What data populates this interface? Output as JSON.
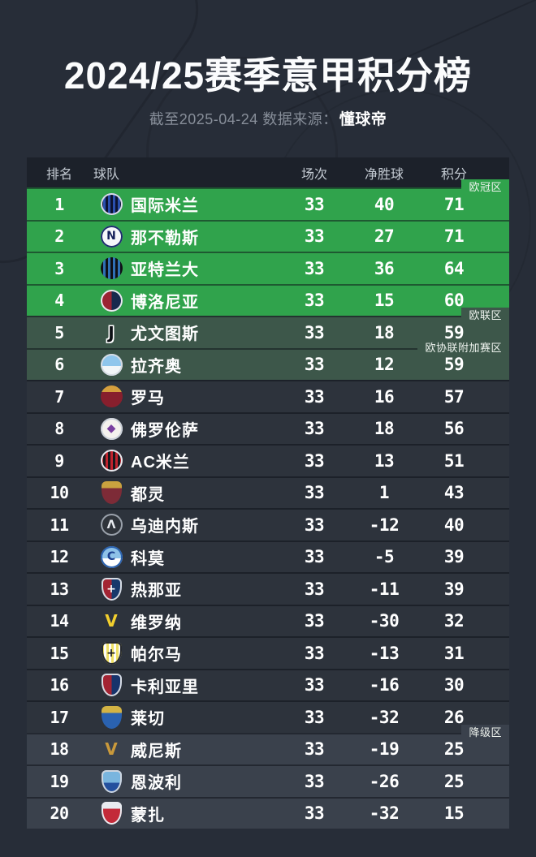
{
  "title": "2024/25赛季意甲积分榜",
  "subtitle": {
    "prefix": "截至2025-04-24 数据来源：",
    "source": "懂球帝"
  },
  "colors": {
    "page_bg": "#272d38",
    "table_header_bg": "#1c212a",
    "champions_zone_green": "#30a34c",
    "europa_zone_green": "#3d574a",
    "normal_row_gray": "#2d333c",
    "relegation_row_gray": "#3a414c",
    "subtitle_gray": "#878e99",
    "text_white": "#ffffff"
  },
  "chart_data": {
    "type": "table",
    "title": "2024/25赛季意甲积分榜",
    "as_of": "截至2025-04-24",
    "source": "懂球帝",
    "columns": [
      "排名",
      "球队",
      "场次",
      "净胜球",
      "积分"
    ],
    "zones": [
      {
        "id": "ucl",
        "label": "欧冠区",
        "rows": [
          1,
          4
        ],
        "color": "#30a34c"
      },
      {
        "id": "uel",
        "label": "欧联区",
        "rows": [
          5,
          5
        ],
        "color": "#3d574a"
      },
      {
        "id": "uecl",
        "label": "欧协联附加赛区",
        "rows": [
          6,
          6
        ],
        "color": "#3d574a"
      },
      {
        "id": "mid",
        "label": "",
        "rows": [
          7,
          17
        ],
        "color": "#2d333c"
      },
      {
        "id": "releg",
        "label": "降级区",
        "rows": [
          18,
          20
        ],
        "color": "#3a414c"
      }
    ],
    "rows": [
      {
        "rank": 1,
        "team": "国际米兰",
        "played": 33,
        "gd": 40,
        "points": 71,
        "zone": "ucl",
        "logo": {
          "shape": "circle",
          "style": "stripes-v",
          "c1": "#0d1331",
          "c2": "#2a4fae",
          "ring": "#d9dde8",
          "glyph": ""
        }
      },
      {
        "rank": 2,
        "team": "那不勒斯",
        "played": 33,
        "gd": 27,
        "points": 71,
        "zone": "ucl",
        "logo": {
          "shape": "circle",
          "style": "solid",
          "c1": "#f5f7fa",
          "ring": "#1d2d6e",
          "glyph": "N",
          "glyph_color": "#14205a"
        }
      },
      {
        "rank": 3,
        "team": "亚特兰大",
        "played": 33,
        "gd": 36,
        "points": 64,
        "zone": "ucl",
        "logo": {
          "shape": "circle",
          "style": "stripes-v",
          "c1": "#0f1015",
          "c2": "#2f6fb5",
          "glyph": ""
        }
      },
      {
        "rank": 4,
        "team": "博洛尼亚",
        "played": 33,
        "gd": 15,
        "points": 60,
        "zone": "ucl",
        "logo": {
          "shape": "circle",
          "style": "split-v",
          "c1": "#9b2433",
          "c2": "#17294d",
          "ring": "#e8ebf0",
          "glyph": ""
        }
      },
      {
        "rank": 5,
        "team": "尤文图斯",
        "played": 33,
        "gd": 18,
        "points": 59,
        "zone": "uel",
        "logo": {
          "shape": "circle",
          "style": "none",
          "glyph": "J",
          "glyph_color": "#0c0f13",
          "big": true,
          "outline": true
        }
      },
      {
        "rank": 6,
        "team": "拉齐奥",
        "played": 33,
        "gd": 12,
        "points": 59,
        "zone": "uecl",
        "logo": {
          "shape": "circle",
          "style": "split-h",
          "c1": "#8fc6ec",
          "c2": "#f2f6f8",
          "ring": "#d5dbe2",
          "glyph": ""
        }
      },
      {
        "rank": 7,
        "team": "罗马",
        "played": 33,
        "gd": 16,
        "points": 57,
        "zone": "mid",
        "logo": {
          "shape": "circle",
          "style": "band-top",
          "c1": "#d59f3d",
          "c2": "#871f2d",
          "glyph": ""
        }
      },
      {
        "rank": 8,
        "team": "佛罗伦萨",
        "played": 33,
        "gd": 18,
        "points": 56,
        "zone": "mid",
        "logo": {
          "shape": "circle",
          "style": "solid",
          "c1": "#f4f2ee",
          "ring": "#ccd2da",
          "glyph": "◆",
          "glyph_color": "#7a3fa0"
        }
      },
      {
        "rank": 9,
        "team": "AC米兰",
        "played": 33,
        "gd": 13,
        "points": 51,
        "zone": "mid",
        "logo": {
          "shape": "circle",
          "style": "stripes-v",
          "c1": "#c0232d",
          "c2": "#17171c",
          "ring": "#e8ebf0",
          "glyph": ""
        }
      },
      {
        "rank": 10,
        "team": "都灵",
        "played": 33,
        "gd": 1,
        "points": 43,
        "zone": "mid",
        "logo": {
          "shape": "shield",
          "style": "band-top",
          "c1": "#c9a23f",
          "c2": "#7d2b37",
          "glyph": ""
        }
      },
      {
        "rank": 11,
        "team": "乌迪内斯",
        "played": 33,
        "gd": -12,
        "points": 40,
        "zone": "mid",
        "logo": {
          "shape": "circle",
          "style": "solid",
          "c1": "#2f343b",
          "ring": "#9aa1ab",
          "glyph": "Λ",
          "glyph_color": "#e8ebf0"
        }
      },
      {
        "rank": 12,
        "team": "科莫",
        "played": 33,
        "gd": -5,
        "points": 39,
        "zone": "mid",
        "logo": {
          "shape": "circle",
          "style": "split-h",
          "c1": "#8ec2e8",
          "c2": "#ffffff",
          "ring": "#2a62b0",
          "glyph": "C",
          "glyph_color": "#1b3f8f"
        }
      },
      {
        "rank": 13,
        "team": "热那亚",
        "played": 33,
        "gd": -11,
        "points": 39,
        "zone": "mid",
        "logo": {
          "shape": "shield",
          "style": "split-v",
          "c1": "#a32433",
          "c2": "#16386b",
          "ring": "#d7dce4",
          "glyph": "+",
          "glyph_color": "#ffffff"
        }
      },
      {
        "rank": 14,
        "team": "维罗纳",
        "played": 33,
        "gd": -30,
        "points": 32,
        "zone": "mid",
        "logo": {
          "shape": "circle",
          "style": "none",
          "glyph": "V",
          "glyph_color": "#f2cf2e",
          "big": true
        }
      },
      {
        "rank": 15,
        "team": "帕尔马",
        "played": 33,
        "gd": -13,
        "points": 31,
        "zone": "mid",
        "logo": {
          "shape": "shield",
          "style": "stripes-v",
          "c1": "#efe064",
          "c2": "#fdfdf8",
          "ring": "#26292e",
          "glyph": "+",
          "glyph_color": "#17181c"
        }
      },
      {
        "rank": 16,
        "team": "卡利亚里",
        "played": 33,
        "gd": -16,
        "points": 30,
        "zone": "mid",
        "logo": {
          "shape": "shield",
          "style": "split-v",
          "c1": "#a32433",
          "c2": "#17336b",
          "ring": "#d7dce4",
          "glyph": ""
        }
      },
      {
        "rank": 17,
        "team": "莱切",
        "played": 33,
        "gd": -32,
        "points": 26,
        "zone": "mid",
        "logo": {
          "shape": "shield",
          "style": "band-top",
          "c1": "#d3b344",
          "c2": "#2a62b0",
          "glyph": ""
        }
      },
      {
        "rank": 18,
        "team": "威尼斯",
        "played": 33,
        "gd": -19,
        "points": 25,
        "zone": "releg",
        "logo": {
          "shape": "circle",
          "style": "none",
          "glyph": "V",
          "glyph_color": "#c9993b",
          "big": true
        }
      },
      {
        "rank": 19,
        "team": "恩波利",
        "played": 33,
        "gd": -26,
        "points": 25,
        "zone": "releg",
        "logo": {
          "shape": "shield",
          "style": "split-h",
          "c1": "#79b5de",
          "c2": "#24509e",
          "ring": "#cdd5df",
          "glyph": ""
        }
      },
      {
        "rank": 20,
        "team": "蒙扎",
        "played": 33,
        "gd": -32,
        "points": 15,
        "zone": "releg",
        "logo": {
          "shape": "shield",
          "style": "band-top",
          "c1": "#e8ebf0",
          "c2": "#c32a39",
          "ring": "#e8ebf0",
          "glyph": ""
        }
      }
    ]
  }
}
